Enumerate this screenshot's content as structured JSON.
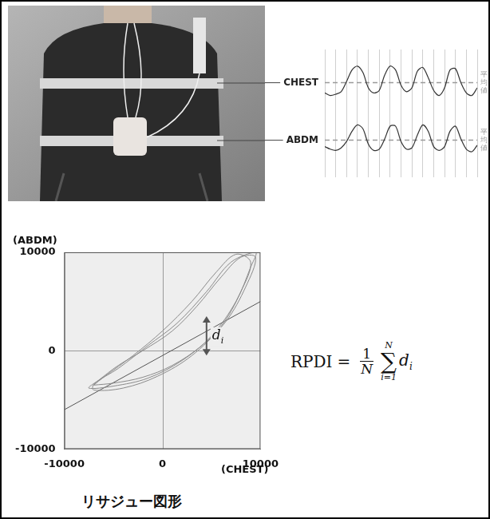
{
  "chart_data": [
    {
      "type": "line",
      "x": [
        0,
        0.5,
        1,
        1.5,
        2,
        2.5,
        3,
        3.5,
        4,
        4.5,
        5,
        5.5,
        6,
        6.5,
        7,
        7.5,
        8,
        8.5,
        9,
        9.5,
        10,
        10.5,
        11,
        11.5,
        12,
        12.5,
        13,
        13.5,
        14
      ],
      "series": [
        {
          "name": "CHEST",
          "color": "#333333",
          "mean": 74,
          "values": [
            66,
            64,
            65,
            67,
            75,
            84,
            87,
            82,
            70,
            66,
            68,
            80,
            87,
            84,
            72,
            67,
            70,
            83,
            86,
            78,
            68,
            64,
            70,
            84,
            85,
            74,
            66,
            64,
            70
          ]
        },
        {
          "name": "ABDM",
          "color": "#333333",
          "mean": 29,
          "values": [
            24,
            22,
            21,
            23,
            28,
            36,
            41,
            38,
            26,
            21,
            22,
            30,
            40,
            40,
            28,
            22,
            23,
            33,
            41,
            36,
            24,
            21,
            24,
            36,
            40,
            30,
            22,
            20,
            25
          ]
        }
      ],
      "mean_label": "平均値",
      "xlim": [
        0,
        14
      ],
      "xticks": [
        0,
        1,
        2,
        3,
        4,
        5,
        6,
        7,
        8,
        9,
        10,
        11,
        12,
        13,
        14
      ],
      "ylim": [
        0,
        100
      ],
      "grid": "x",
      "tick_labels": false
    },
    {
      "type": "scatter",
      "title": "リサジュー図形",
      "x_label": "(CHEST)",
      "y_label": "(ABDM)",
      "xlim": [
        -10000,
        10000
      ],
      "ylim": [
        -10000,
        10000
      ],
      "xticks": [
        -10000,
        0,
        10000
      ],
      "yticks": [
        -10000,
        0,
        10000
      ],
      "grid": false,
      "series": [
        {
          "color": "#8a8a8a",
          "line_style": "solid",
          "x": [
            -7000,
            -5000,
            -2000,
            1000,
            4000,
            6500,
            8500,
            9500,
            8000,
            6000,
            3500,
            1000,
            -2000,
            -4500,
            -6500,
            -7500,
            -5000,
            -1500,
            2000,
            5000,
            7500,
            9000,
            9500,
            7000,
            4500,
            1500,
            -1500,
            -4500,
            -7000,
            -7000,
            -4000,
            -500,
            3000,
            6000,
            8000,
            9000,
            7500,
            5500,
            3000,
            0,
            -3000,
            -6000,
            -7000
          ],
          "y": [
            -3500,
            -3300,
            -2700,
            -1500,
            500,
            3000,
            6500,
            9500,
            9500,
            7500,
            4500,
            2000,
            0,
            -1500,
            -3000,
            -3800,
            -3600,
            -2800,
            -1000,
            1500,
            5000,
            8500,
            10000,
            9000,
            6000,
            2800,
            500,
            -1800,
            -3400,
            -4000,
            -3800,
            -2600,
            -500,
            2500,
            6000,
            9000,
            9800,
            8000,
            5000,
            2000,
            -500,
            -2700,
            -3500
          ]
        }
      ],
      "fit_line": {
        "color": "#555555",
        "x": [
          -10000,
          10000
        ],
        "y": [
          -6000,
          5000
        ]
      },
      "annotations": [
        {
          "text": "d",
          "subscript": "i",
          "x": 4500,
          "y": [
            -500,
            3500
          ]
        }
      ],
      "formula": {
        "lhs": "RPDI",
        "equals": "=",
        "numerator": "1",
        "denominator": "N",
        "operator": "∑",
        "upper": "N",
        "lower": "i=1",
        "term": "d",
        "subscript": "i"
      }
    }
  ]
}
